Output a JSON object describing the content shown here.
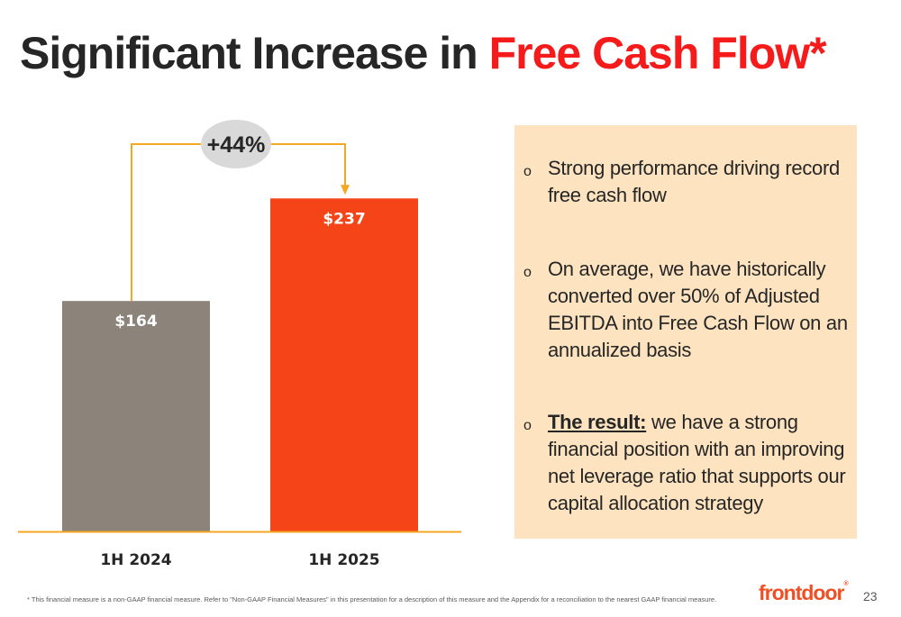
{
  "title": {
    "prefix": "Significant Increase in ",
    "highlight": "Free Cash Flow*"
  },
  "chart_data": {
    "type": "bar",
    "categories": [
      "1H 2024",
      "1H 2025"
    ],
    "values": [
      164,
      237
    ],
    "data_labels": [
      "$164",
      "$237"
    ],
    "colors": [
      "#8c847b",
      "#f44418"
    ],
    "ylim": [
      0,
      300
    ],
    "change_label": "+44%",
    "connector_color": "#f5a623"
  },
  "bullets": [
    {
      "marker": "o",
      "bold": "",
      "text": "Strong performance driving record free cash flow"
    },
    {
      "marker": "o",
      "bold": "",
      "text": "On average, we have historically converted over 50% of Adjusted EBITDA into Free Cash Flow on an annualized basis"
    },
    {
      "marker": "o",
      "bold": "The result:",
      "text": " we have a strong financial position with an improving net leverage ratio that supports our capital allocation strategy"
    }
  ],
  "footnote": "* This financial measure is a non-GAAP financial measure. Refer to \"Non-GAAP Financial Measures\" in this presentation for a description of this measure and the Appendix for a reconciliation to the nearest GAAP financial measure.",
  "logo": {
    "text": "frontdoor",
    "mark": "®",
    "icon": "frontdoor-logo"
  },
  "page_number": "23"
}
